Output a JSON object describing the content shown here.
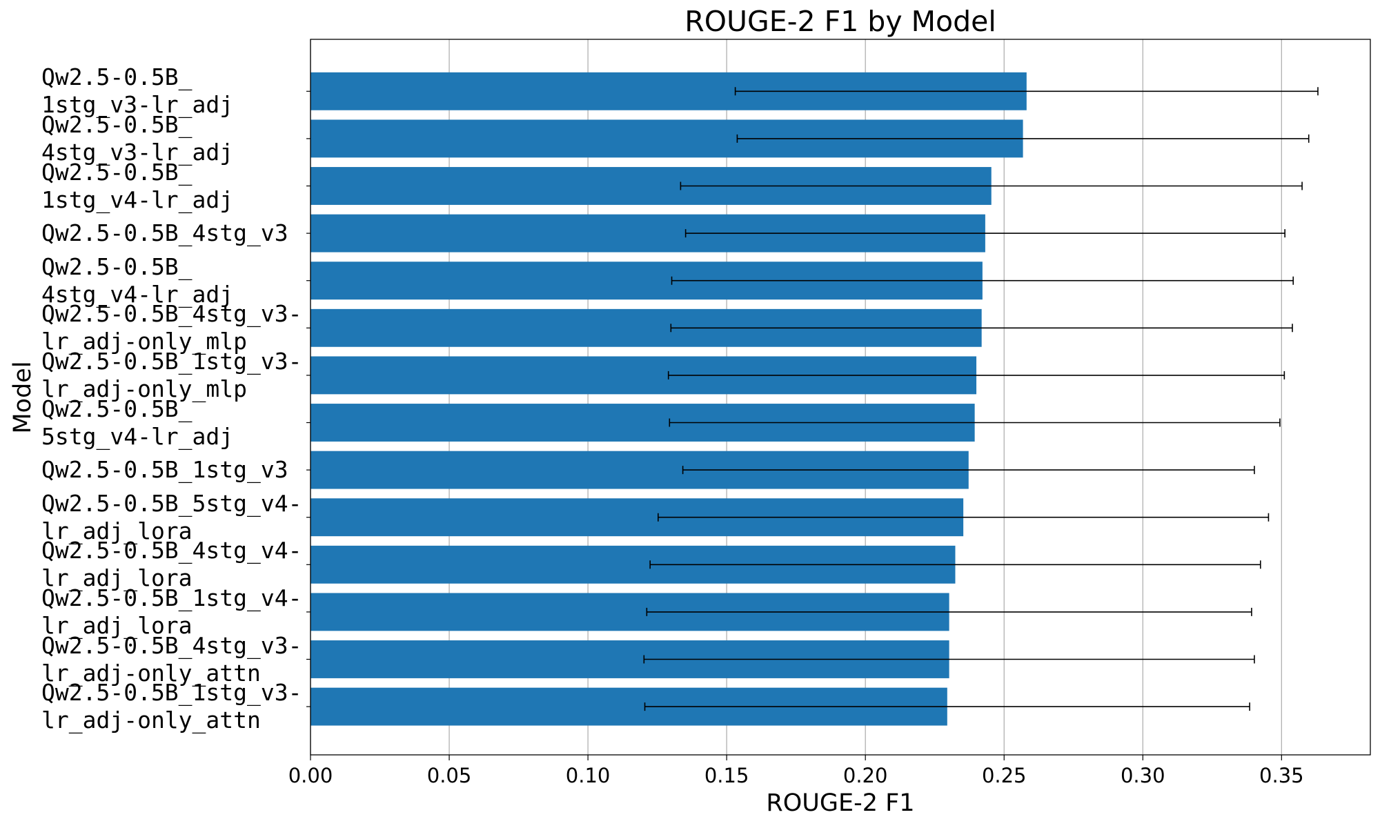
{
  "chart_data": {
    "type": "barh",
    "title": "ROUGE-2 F1 by Model",
    "x_label": "ROUGE-2 F1",
    "y_label": "Model",
    "categories": [
      "Qw2.5-0.5B_\n1stg_v3-lr_adj",
      "Qw2.5-0.5B_\n4stg_v3-lr_adj",
      "Qw2.5-0.5B_\n1stg_v4-lr_adj",
      "Qw2.5-0.5B_4stg_v3",
      "Qw2.5-0.5B_\n4stg_v4-lr_adj",
      "Qw2.5-0.5B_4stg_v3-\nlr_adj-only_mlp",
      "Qw2.5-0.5B_1stg_v3-\nlr_adj-only_mlp",
      "Qw2.5-0.5B_\n5stg_v4-lr_adj",
      "Qw2.5-0.5B_1stg_v3",
      "Qw2.5-0.5B_5stg_v4-\nlr_adj_lora",
      "Qw2.5-0.5B_4stg_v4-\nlr_adj_lora",
      "Qw2.5-0.5B_1stg_v4-\nlr_adj_lora",
      "Qw2.5-0.5B_4stg_v3-\nlr_adj-only_attn",
      "Qw2.5-0.5B_1stg_v3-\nlr_adj-only_attn"
    ],
    "values": [
      0.2581,
      0.2568,
      0.2454,
      0.2432,
      0.2422,
      0.2419,
      0.24,
      0.2394,
      0.2372,
      0.2353,
      0.2324,
      0.2302,
      0.2302,
      0.2295
    ],
    "errors": [
      0.105,
      0.103,
      0.112,
      0.108,
      0.112,
      0.112,
      0.111,
      0.11,
      0.103,
      0.11,
      0.11,
      0.109,
      0.11,
      0.109
    ],
    "color": "#1f77b4",
    "xlim": [
      0,
      0.382
    ],
    "xticks": [
      {
        "value": 0,
        "label": "0.00"
      },
      {
        "value": 0.05,
        "label": "0.05"
      },
      {
        "value": 0.1,
        "label": "0.10"
      },
      {
        "value": 0.15,
        "label": "0.15"
      },
      {
        "value": 0.2,
        "label": "0.20"
      },
      {
        "value": 0.25,
        "label": "0.25"
      },
      {
        "value": 0.3,
        "label": "0.30"
      },
      {
        "value": 0.35,
        "label": "0.35"
      }
    ],
    "grid": true
  }
}
